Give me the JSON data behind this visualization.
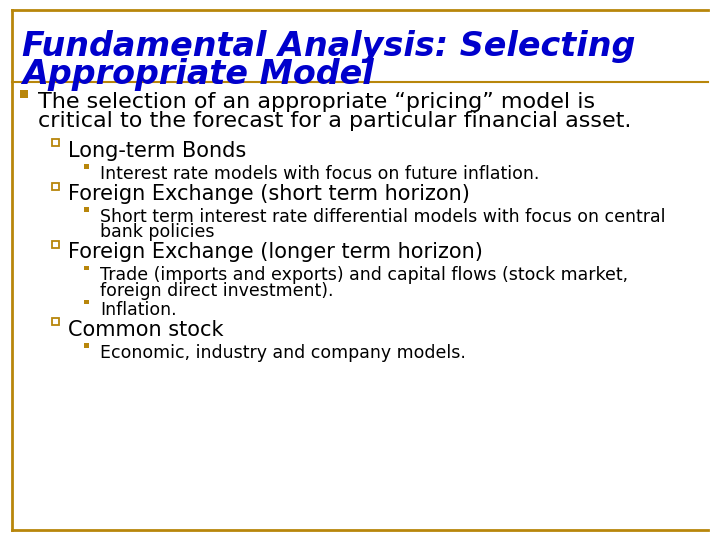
{
  "title_line1": "Fundamental Analysis: Selecting",
  "title_line2": "Appropriate Model",
  "title_color": "#0000CC",
  "background_color": "#FFFFFF",
  "border_color": "#B8860B",
  "bullet1_color": "#B8860B",
  "bullet2_color": "#B8860B",
  "bullet3_color": "#B8860B",
  "text_color": "#000000",
  "title_fontsize": 24,
  "level1_fontsize": 16,
  "level2_fontsize": 15,
  "level3_fontsize": 12.5,
  "content": [
    {
      "level": 1,
      "text": "The selection of an appropriate “pricing” model is\ncritical to the forecast for a particular financial asset."
    },
    {
      "level": 2,
      "text": "Long-term Bonds"
    },
    {
      "level": 3,
      "text": "Interest rate models with focus on future inflation."
    },
    {
      "level": 2,
      "text": "Foreign Exchange (short term horizon)"
    },
    {
      "level": 3,
      "text": "Short term interest rate differential models with focus on central\nbank policies"
    },
    {
      "level": 2,
      "text": "Foreign Exchange (longer term horizon)"
    },
    {
      "level": 3,
      "text": "Trade (imports and exports) and capital flows (stock market,\nforeign direct investment)."
    },
    {
      "level": 3,
      "text": "Inflation."
    },
    {
      "level": 2,
      "text": "Common stock"
    },
    {
      "level": 3,
      "text": "Economic, industry and company models."
    }
  ]
}
